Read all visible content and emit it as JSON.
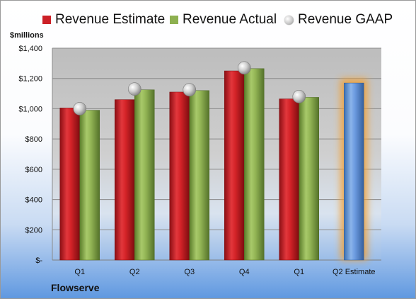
{
  "chart_data": {
    "type": "bar",
    "ylabel": "$millions",
    "ylim": [
      0,
      1400
    ],
    "y_ticks": [
      "$-",
      "$200",
      "$400",
      "$600",
      "$800",
      "$1,000",
      "$1,200",
      "$1,400"
    ],
    "categories": [
      "Q1",
      "Q2",
      "Q3",
      "Q4",
      "Q1",
      "Q2 Estimate"
    ],
    "grid": true,
    "legend_position": "top",
    "series": [
      {
        "name": "Revenue Estimate",
        "mark": "bar",
        "color": "#cc2027",
        "values": [
          1005,
          1060,
          1110,
          1250,
          1065,
          null
        ]
      },
      {
        "name": "Revenue Actual",
        "mark": "bar",
        "color": "#8db050",
        "values": [
          990,
          1125,
          1120,
          1265,
          1075,
          null
        ]
      },
      {
        "name": "Revenue GAAP",
        "mark": "marker",
        "color": "#b8b8b8",
        "values": [
          1000,
          1130,
          1125,
          1270,
          1080,
          null
        ]
      },
      {
        "name": "",
        "mark": "highlighted-bar",
        "color": "#5b8fd1",
        "values": [
          null,
          null,
          null,
          null,
          null,
          1170
        ]
      }
    ],
    "footer": "Flowserve"
  }
}
